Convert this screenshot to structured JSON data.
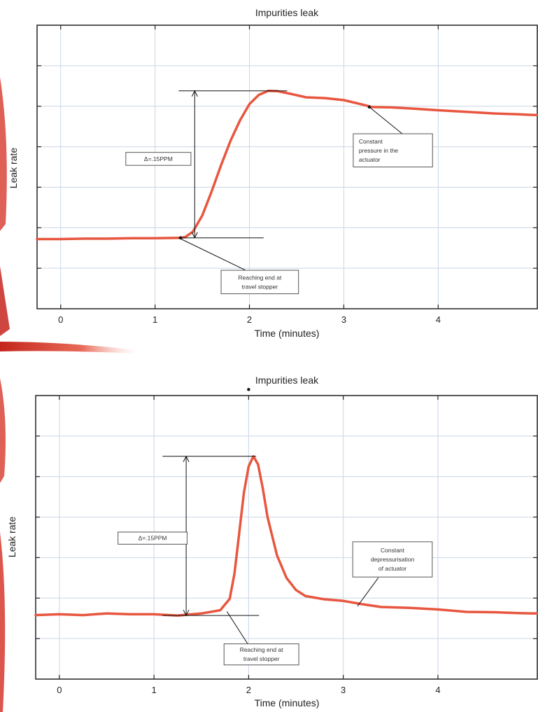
{
  "chart_data": [
    {
      "type": "line",
      "title": "Impurities leak",
      "xlabel": "Time (minutes)",
      "ylabel": "Leak rate",
      "xlim": [
        -0.25,
        5.05
      ],
      "ylim": [
        0,
        7
      ],
      "x_ticks": [
        0,
        1,
        2,
        3,
        4
      ],
      "y_ticks": [
        1,
        2,
        3,
        4,
        5,
        6
      ],
      "grid": true,
      "series": [
        {
          "color": "#e8563f",
          "x": [
            -0.25,
            0,
            0.25,
            0.5,
            0.75,
            1.0,
            1.25,
            1.32,
            1.4,
            1.5,
            1.6,
            1.7,
            1.8,
            1.9,
            2.0,
            2.1,
            2.2,
            2.3,
            2.45,
            2.6,
            2.8,
            3.0,
            3.2,
            3.3,
            3.5,
            3.75,
            4.0,
            4.3,
            4.6,
            4.85,
            5.05
          ],
          "y": [
            1.72,
            1.72,
            1.73,
            1.73,
            1.74,
            1.74,
            1.75,
            1.77,
            1.9,
            2.3,
            2.9,
            3.55,
            4.15,
            4.65,
            5.05,
            5.28,
            5.38,
            5.37,
            5.3,
            5.22,
            5.2,
            5.15,
            5.04,
            4.98,
            4.97,
            4.94,
            4.9,
            4.86,
            4.82,
            4.8,
            4.78
          ]
        }
      ],
      "annotations": [
        {
          "text": "Δ=.15PPM"
        },
        {
          "text": "Constant pressure in the actuator"
        },
        {
          "text": "Reaching end at travel stopper"
        }
      ]
    },
    {
      "type": "line",
      "title": "Impurities leak",
      "xlabel": "Time (minutes)",
      "ylabel": "Leak rate",
      "xlim": [
        -0.25,
        5.05
      ],
      "ylim": [
        0,
        7
      ],
      "x_ticks": [
        0,
        1,
        2,
        3,
        4
      ],
      "y_ticks": [
        1,
        2,
        3,
        4,
        5,
        6
      ],
      "grid": true,
      "series": [
        {
          "color": "#e8563f",
          "x": [
            -0.25,
            0,
            0.25,
            0.5,
            0.75,
            1.0,
            1.25,
            1.5,
            1.7,
            1.8,
            1.85,
            1.9,
            1.95,
            2.0,
            2.05,
            2.1,
            2.15,
            2.2,
            2.3,
            2.4,
            2.5,
            2.6,
            2.8,
            3.0,
            3.2,
            3.4,
            3.7,
            4.0,
            4.3,
            4.6,
            4.85,
            5.05
          ],
          "y": [
            1.58,
            1.6,
            1.58,
            1.62,
            1.6,
            1.6,
            1.57,
            1.62,
            1.7,
            1.98,
            2.6,
            3.6,
            4.6,
            5.25,
            5.5,
            5.3,
            4.7,
            4.0,
            3.05,
            2.5,
            2.2,
            2.05,
            1.97,
            1.93,
            1.85,
            1.78,
            1.76,
            1.72,
            1.66,
            1.65,
            1.63,
            1.62
          ]
        }
      ],
      "annotations": [
        {
          "text": "Δ=.15PPM"
        },
        {
          "text": "Constant depressurisation of actuator"
        },
        {
          "text": "Reaching end at travel stopper"
        }
      ]
    }
  ]
}
